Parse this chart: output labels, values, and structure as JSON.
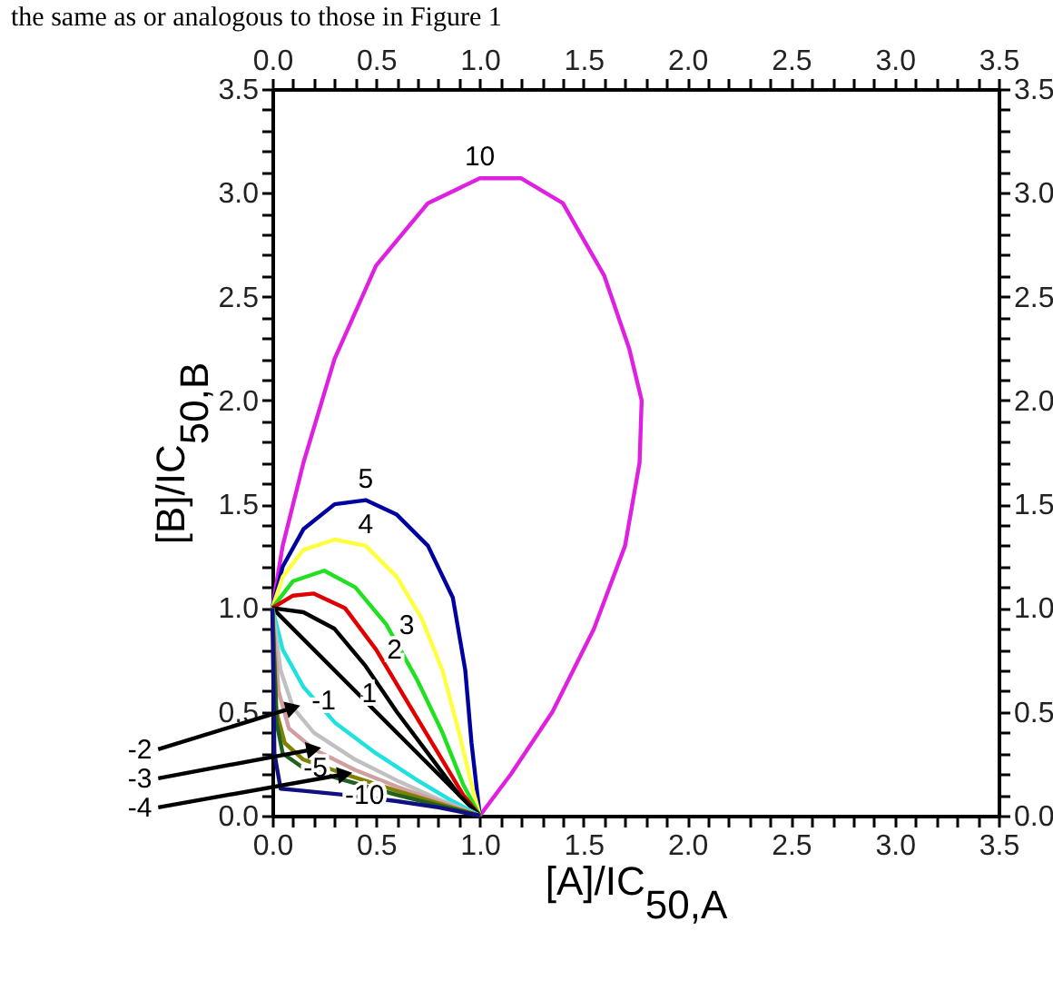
{
  "chart_data": {
    "type": "line",
    "xlabel": "[A]/IC$_{50,A}$",
    "ylabel": "[B]/IC$_{50,B}$",
    "annotations": [
      "the same as or analogous to those in Figure 1"
    ],
    "xlim": [
      0,
      3.5
    ],
    "ylim": [
      0,
      3.5
    ],
    "x2lim": [
      0,
      3.5
    ],
    "y2lim": [
      0,
      3.5
    ],
    "xticks": [
      {
        "value": 0,
        "label": "0.0"
      },
      {
        "value": 0.1,
        "label": null
      },
      {
        "value": 0.2,
        "label": null
      },
      {
        "value": 0.3,
        "label": null
      },
      {
        "value": 0.4,
        "label": null
      },
      0.5,
      {
        "value": 0.6,
        "label": null
      },
      {
        "value": 0.7,
        "label": null
      },
      {
        "value": 0.8,
        "label": null
      },
      {
        "value": 0.9,
        "label": null
      },
      {
        "value": 1,
        "label": "1.0"
      },
      {
        "value": 1.1,
        "label": null
      },
      {
        "value": 1.2,
        "label": null
      },
      {
        "value": 1.3,
        "label": null
      },
      {
        "value": 1.4,
        "label": null
      },
      1.5,
      {
        "value": 1.6,
        "label": null
      },
      {
        "value": 1.7,
        "label": null
      },
      {
        "value": 1.8,
        "label": null
      },
      {
        "value": 1.9,
        "label": null
      },
      {
        "value": 2,
        "label": "2.0"
      },
      {
        "value": 2.1,
        "label": null
      },
      {
        "value": 2.2,
        "label": null
      },
      {
        "value": 2.3,
        "label": null
      },
      {
        "value": 2.4,
        "label": null
      },
      2.5,
      {
        "value": 2.6,
        "label": null
      },
      {
        "value": 2.7,
        "label": null
      },
      {
        "value": 2.8,
        "label": null
      },
      {
        "value": 2.9,
        "label": null
      },
      {
        "value": 3,
        "label": "3.0"
      },
      {
        "value": 3.1,
        "label": null
      },
      {
        "value": 3.2,
        "label": null
      },
      {
        "value": 3.3,
        "label": null
      },
      {
        "value": 3.4,
        "label": null
      },
      3.5
    ],
    "yticks": [
      {
        "value": 0,
        "label": "0.0"
      },
      {
        "value": 0.1,
        "label": null
      },
      {
        "value": 0.2,
        "label": null
      },
      {
        "value": 0.3,
        "label": null
      },
      {
        "value": 0.4,
        "label": null
      },
      0.5,
      {
        "value": 0.6,
        "label": null
      },
      {
        "value": 0.7,
        "label": null
      },
      {
        "value": 0.8,
        "label": null
      },
      {
        "value": 0.9,
        "label": null
      },
      {
        "value": 1,
        "label": "1.0"
      },
      {
        "value": 1.1,
        "label": null
      },
      {
        "value": 1.2,
        "label": null
      },
      {
        "value": 1.3,
        "label": null
      },
      {
        "value": 1.4,
        "label": null
      },
      1.5,
      {
        "value": 1.6,
        "label": null
      },
      {
        "value": 1.7,
        "label": null
      },
      {
        "value": 1.8,
        "label": null
      },
      {
        "value": 1.9,
        "label": null
      },
      {
        "value": 2,
        "label": "2.0"
      },
      {
        "value": 2.1,
        "label": null
      },
      {
        "value": 2.2,
        "label": null
      },
      {
        "value": 2.3,
        "label": null
      },
      {
        "value": 2.4,
        "label": null
      },
      2.5,
      {
        "value": 2.6,
        "label": null
      },
      {
        "value": 2.7,
        "label": null
      },
      {
        "value": 2.8,
        "label": null
      },
      {
        "value": 2.9,
        "label": null
      },
      {
        "value": 3,
        "label": "3.0"
      },
      {
        "value": 3.1,
        "label": null
      },
      {
        "value": 3.2,
        "label": null
      },
      {
        "value": 3.3,
        "label": null
      },
      {
        "value": 3.4,
        "label": null
      },
      3.5
    ],
    "x2ticks": [
      {
        "value": 0,
        "label": "0.0"
      },
      {
        "value": 0.1,
        "label": null
      },
      {
        "value": 0.2,
        "label": null
      },
      {
        "value": 0.3,
        "label": null
      },
      {
        "value": 0.4,
        "label": null
      },
      0.5,
      {
        "value": 0.6,
        "label": null
      },
      {
        "value": 0.7,
        "label": null
      },
      {
        "value": 0.8,
        "label": null
      },
      {
        "value": 0.9,
        "label": null
      },
      {
        "value": 1,
        "label": "1.0"
      },
      {
        "value": 1.1,
        "label": null
      },
      {
        "value": 1.2,
        "label": null
      },
      {
        "value": 1.3,
        "label": null
      },
      {
        "value": 1.4,
        "label": null
      },
      1.5,
      {
        "value": 1.6,
        "label": null
      },
      {
        "value": 1.7,
        "label": null
      },
      {
        "value": 1.8,
        "label": null
      },
      {
        "value": 1.9,
        "label": null
      },
      {
        "value": 2,
        "label": "2.0"
      },
      {
        "value": 2.1,
        "label": null
      },
      {
        "value": 2.2,
        "label": null
      },
      {
        "value": 2.3,
        "label": null
      },
      {
        "value": 2.4,
        "label": null
      },
      2.5,
      {
        "value": 2.6,
        "label": null
      },
      {
        "value": 2.7,
        "label": null
      },
      {
        "value": 2.8,
        "label": null
      },
      {
        "value": 2.9,
        "label": null
      },
      {
        "value": 3,
        "label": "3.0"
      },
      {
        "value": 3.1,
        "label": null
      },
      {
        "value": 3.2,
        "label": null
      },
      {
        "value": 3.3,
        "label": null
      },
      {
        "value": 3.4,
        "label": null
      },
      3.5
    ],
    "y2ticks": [
      {
        "value": 0,
        "label": "0.0"
      },
      {
        "value": 0.1,
        "label": null
      },
      {
        "value": 0.2,
        "label": null
      },
      {
        "value": 0.3,
        "label": null
      },
      {
        "value": 0.4,
        "label": null
      },
      0.5,
      {
        "value": 0.6,
        "label": null
      },
      {
        "value": 0.7,
        "label": null
      },
      {
        "value": 0.8,
        "label": null
      },
      {
        "value": 0.9,
        "label": null
      },
      {
        "value": 1,
        "label": "1.0"
      },
      {
        "value": 1.1,
        "label": null
      },
      {
        "value": 1.2,
        "label": null
      },
      {
        "value": 1.3,
        "label": null
      },
      {
        "value": 1.4,
        "label": null
      },
      1.5,
      {
        "value": 1.6,
        "label": null
      },
      {
        "value": 1.7,
        "label": null
      },
      {
        "value": 1.8,
        "label": null
      },
      {
        "value": 1.9,
        "label": null
      },
      {
        "value": 2,
        "label": "2.0"
      },
      {
        "value": 2.1,
        "label": null
      },
      {
        "value": 2.2,
        "label": null
      },
      {
        "value": 2.3,
        "label": null
      },
      {
        "value": 2.4,
        "label": null
      },
      2.5,
      {
        "value": 2.6,
        "label": null
      },
      {
        "value": 2.7,
        "label": null
      },
      {
        "value": 2.8,
        "label": null
      },
      {
        "value": 2.9,
        "label": null
      },
      {
        "value": 3,
        "label": "3.0"
      },
      {
        "value": 3.1,
        "label": null
      },
      {
        "value": 3.2,
        "label": null
      },
      {
        "value": 3.3,
        "label": null
      },
      {
        "value": 3.4,
        "label": null
      },
      3.5
    ],
    "line_style": "solid",
    "marker": "none",
    "series": [
      {
        "name": "10",
        "color": "#e020e0",
        "x": [
          0,
          0.05,
          0.15,
          0.3,
          0.5,
          0.75,
          1.0,
          1.2,
          1.4,
          1.6,
          1.72,
          1.78,
          1.77,
          1.7,
          1.55,
          1.35,
          1.15,
          1.0
        ],
        "values": [
          1,
          1.3,
          1.7,
          2.2,
          2.65,
          2.95,
          3.07,
          3.07,
          2.95,
          2.6,
          2.25,
          2.0,
          1.7,
          1.3,
          0.9,
          0.5,
          0.2,
          0
        ]
      },
      {
        "name": "5",
        "color": "#0000a0",
        "x": [
          0,
          0.05,
          0.15,
          0.3,
          0.45,
          0.6,
          0.75,
          0.87,
          0.93,
          0.96,
          1.0
        ],
        "values": [
          1,
          1.2,
          1.38,
          1.5,
          1.52,
          1.45,
          1.3,
          1.05,
          0.7,
          0.35,
          0
        ]
      },
      {
        "name": "4",
        "color": "#ffff40",
        "x": [
          0,
          0.05,
          0.15,
          0.3,
          0.45,
          0.6,
          0.72,
          0.82,
          0.9,
          0.96,
          1.0
        ],
        "values": [
          1,
          1.15,
          1.28,
          1.33,
          1.3,
          1.15,
          0.95,
          0.7,
          0.4,
          0.15,
          0
        ]
      },
      {
        "name": "3",
        "color": "#20e020",
        "x": [
          0,
          0.1,
          0.25,
          0.4,
          0.55,
          0.7,
          0.82,
          0.92,
          1.0
        ],
        "values": [
          1,
          1.13,
          1.18,
          1.1,
          0.92,
          0.65,
          0.4,
          0.15,
          0
        ]
      },
      {
        "name": "2",
        "color": "#e00000",
        "x": [
          0,
          0.1,
          0.2,
          0.35,
          0.5,
          0.65,
          0.8,
          0.92,
          1.0
        ],
        "values": [
          1,
          1.06,
          1.07,
          1.0,
          0.8,
          0.55,
          0.3,
          0.1,
          0
        ]
      },
      {
        "name": "1",
        "color": "#000000",
        "x": [
          0,
          0.15,
          0.3,
          0.45,
          0.6,
          0.75,
          0.9,
          1.0
        ],
        "values": [
          1,
          0.98,
          0.9,
          0.72,
          0.5,
          0.3,
          0.1,
          0
        ]
      },
      {
        "color": "#000000",
        "x": [
          0,
          1.0
        ],
        "values": [
          1,
          0
        ]
      },
      {
        "name": "-1",
        "color": "#20e0e0",
        "x": [
          0,
          0.05,
          0.15,
          0.3,
          0.5,
          0.7,
          0.85,
          1.0
        ],
        "values": [
          1,
          0.8,
          0.62,
          0.45,
          0.3,
          0.17,
          0.08,
          0
        ]
      },
      {
        "name": "-2",
        "color": "#c0c0c0",
        "x": [
          0,
          0.04,
          0.1,
          0.2,
          0.4,
          0.6,
          0.8,
          1.0
        ],
        "values": [
          1,
          0.7,
          0.52,
          0.4,
          0.27,
          0.17,
          0.08,
          0
        ]
      },
      {
        "name": "-3",
        "color": "#d0a0a0",
        "x": [
          0,
          0.03,
          0.08,
          0.2,
          0.4,
          0.6,
          0.8,
          1.0
        ],
        "values": [
          1,
          0.6,
          0.42,
          0.32,
          0.22,
          0.14,
          0.07,
          0
        ]
      },
      {
        "name": "-4",
        "color": "#808000",
        "x": [
          0,
          0.02,
          0.06,
          0.15,
          0.35,
          0.6,
          0.8,
          1.0
        ],
        "values": [
          1,
          0.5,
          0.35,
          0.27,
          0.2,
          0.12,
          0.06,
          0
        ]
      },
      {
        "name": "-5",
        "color": "#206020",
        "x": [
          0,
          0.02,
          0.05,
          0.15,
          0.35,
          0.6,
          0.8,
          1.0
        ],
        "values": [
          1,
          0.45,
          0.3,
          0.23,
          0.17,
          0.1,
          0.05,
          0
        ]
      },
      {
        "name": "-10",
        "color": "#101080",
        "x": [
          0,
          0.01,
          0.04,
          0.15,
          0.35,
          0.6,
          0.8,
          1.0
        ],
        "values": [
          1,
          0.3,
          0.13,
          0.12,
          0.1,
          0.07,
          0.04,
          0
        ]
      }
    ]
  }
}
